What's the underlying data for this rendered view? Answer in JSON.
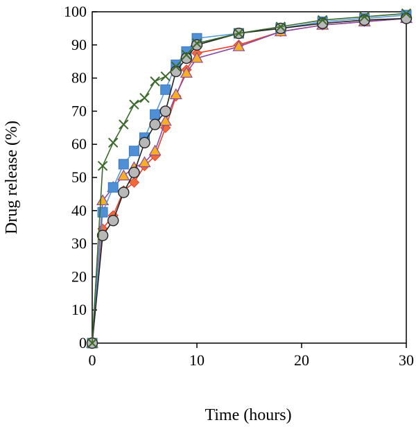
{
  "chart_data": {
    "type": "line",
    "title": "",
    "xlabel": "Time (hours)",
    "ylabel": "Drug release (%)",
    "xlim": [
      0,
      30
    ],
    "ylim": [
      0,
      100
    ],
    "xticks": [
      0,
      10,
      20,
      30
    ],
    "yticks": [
      0,
      10,
      20,
      30,
      40,
      50,
      60,
      70,
      80,
      90,
      100
    ],
    "grid": false,
    "legend": "none",
    "series": [
      {
        "marker": "diamond",
        "color": "#e8402a",
        "fill": "#f26a3a",
        "x": [
          0,
          1,
          2,
          3,
          4,
          5,
          6,
          7,
          8,
          9,
          10,
          14,
          18,
          22,
          26,
          30
        ],
        "y": [
          0,
          34.5,
          38.5,
          46,
          48.5,
          53.5,
          56.5,
          65,
          74.5,
          82.5,
          87.5,
          90,
          94,
          96,
          97,
          98
        ]
      },
      {
        "marker": "triangle",
        "color": "#8a4aa0",
        "fill": "#f5b026",
        "x": [
          0,
          1,
          2,
          3,
          4,
          5,
          6,
          7,
          8,
          9,
          10,
          14,
          18,
          22,
          26,
          30
        ],
        "y": [
          0,
          43,
          47,
          50.5,
          53,
          54.5,
          58,
          67,
          75,
          81.5,
          86,
          89.5,
          94,
          96,
          97,
          98
        ]
      },
      {
        "marker": "square",
        "color": "#5b9bd5",
        "fill": "#4f8fd6",
        "x": [
          0,
          1,
          2,
          3,
          4,
          5,
          6,
          7,
          8,
          9,
          10,
          14,
          18,
          22,
          26,
          30
        ],
        "y": [
          0,
          39.5,
          47,
          54,
          58,
          62,
          69,
          76.5,
          84,
          88,
          92,
          93.5,
          95,
          97,
          98,
          99
        ]
      },
      {
        "marker": "circle",
        "color": "#222222",
        "fill": "#b8b8b8",
        "x": [
          0,
          1,
          2,
          3,
          4,
          5,
          6,
          7,
          8,
          9,
          10,
          14,
          18,
          22,
          26,
          30
        ],
        "y": [
          0,
          32.5,
          37,
          45.5,
          51.5,
          60.5,
          66,
          70,
          82,
          86,
          90,
          93.5,
          95,
          96.5,
          97.5,
          98
        ]
      },
      {
        "marker": "x",
        "color": "#3a6a2a",
        "fill": "none",
        "x": [
          0,
          1,
          2,
          3,
          4,
          5,
          6,
          7,
          8,
          9,
          10,
          14,
          18,
          22,
          26,
          30
        ],
        "y": [
          0,
          53.5,
          60.5,
          66,
          72,
          74,
          79,
          80.5,
          83.5,
          87,
          90.5,
          93.5,
          95.5,
          97.5,
          98.5,
          99.5
        ]
      }
    ]
  }
}
